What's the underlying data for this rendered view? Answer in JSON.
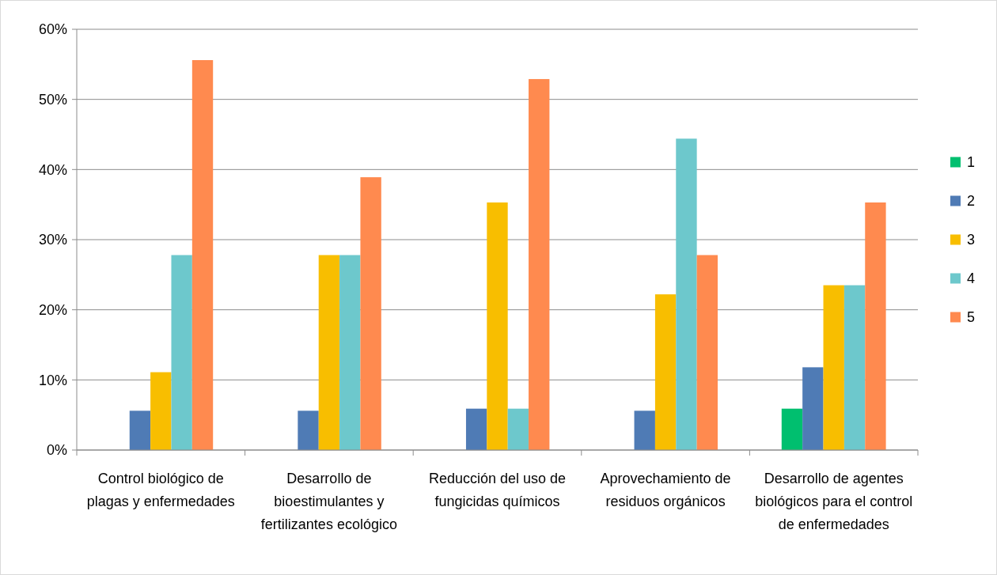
{
  "chart_data": {
    "type": "bar",
    "categories": [
      "Control biológico de plagas y enfermedades",
      "Desarrollo de bioestimulantes y fertilizantes ecológico",
      "Reducción del uso de fungicidas químicos",
      "Aprovechamiento de residuos orgánicos",
      "Desarrollo de agentes biológicos para el control de enfermedades"
    ],
    "series": [
      {
        "name": "1",
        "color": "#00bf6f",
        "values": [
          0,
          0,
          0,
          0,
          5.9
        ]
      },
      {
        "name": "2",
        "color": "#4f7bb5",
        "values": [
          5.6,
          5.6,
          5.9,
          5.6,
          11.8
        ]
      },
      {
        "name": "3",
        "color": "#f8be00",
        "values": [
          11.1,
          27.8,
          35.3,
          22.2,
          23.5
        ]
      },
      {
        "name": "4",
        "color": "#6dc8cc",
        "values": [
          27.8,
          27.8,
          5.9,
          44.4,
          23.5
        ]
      },
      {
        "name": "5",
        "color": "#ff8a4f",
        "values": [
          55.6,
          38.9,
          52.9,
          27.8,
          35.3
        ]
      }
    ],
    "ylim": [
      0,
      60
    ],
    "yticks": [
      {
        "value": 0,
        "label": "0%"
      },
      {
        "value": 10,
        "label": "10%"
      },
      {
        "value": 20,
        "label": "20%"
      },
      {
        "value": 30,
        "label": "30%"
      },
      {
        "value": 40,
        "label": "40%"
      },
      {
        "value": 50,
        "label": "50%"
      },
      {
        "value": 60,
        "label": "60%"
      }
    ],
    "grid": "y",
    "legend": "right"
  }
}
